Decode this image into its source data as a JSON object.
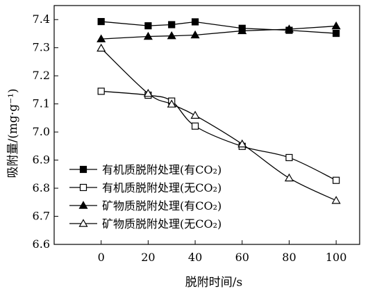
{
  "chart_data": {
    "type": "line",
    "title": "",
    "xlabel": "脱附时间/s",
    "ylabel": "吸附量/(mg·g⁻¹)",
    "xlim": [
      -20,
      110
    ],
    "ylim": [
      6.6,
      7.45
    ],
    "x_ticks": [
      "0",
      "20",
      "40",
      "60",
      "80",
      "100"
    ],
    "y_ticks": [
      "6.6",
      "6.7",
      "6.8",
      "6.9",
      "7.0",
      "7.1",
      "7.2",
      "7.3",
      "7.4"
    ],
    "grid": false,
    "legend_position": "bottom-left",
    "series": [
      {
        "name": "有机质脱附处理(有CO₂)",
        "marker": "filled-square",
        "smooth": false,
        "x": [
          0,
          20,
          30,
          40,
          60,
          80,
          100
        ],
        "y": [
          7.393,
          7.378,
          7.382,
          7.392,
          7.369,
          7.362,
          7.351
        ]
      },
      {
        "name": "有机质脱附处理(无CO₂)",
        "marker": "open-square",
        "smooth": true,
        "x": [
          0,
          20,
          30,
          40,
          60,
          80,
          100
        ],
        "y": [
          7.145,
          7.131,
          7.11,
          7.021,
          6.949,
          6.909,
          6.828
        ]
      },
      {
        "name": "矿物质脱附处理(有CO₂)",
        "marker": "filled-triangle",
        "smooth": false,
        "x": [
          0,
          20,
          30,
          40,
          60,
          80,
          100
        ],
        "y": [
          7.331,
          7.34,
          7.342,
          7.345,
          7.36,
          7.366,
          7.377
        ]
      },
      {
        "name": "矿物质脱附处理(无CO₂)",
        "marker": "open-triangle",
        "smooth": true,
        "x": [
          0,
          20,
          30,
          40,
          60,
          80,
          100
        ],
        "y": [
          7.298,
          7.137,
          7.099,
          7.059,
          6.957,
          6.836,
          6.756
        ]
      }
    ]
  }
}
